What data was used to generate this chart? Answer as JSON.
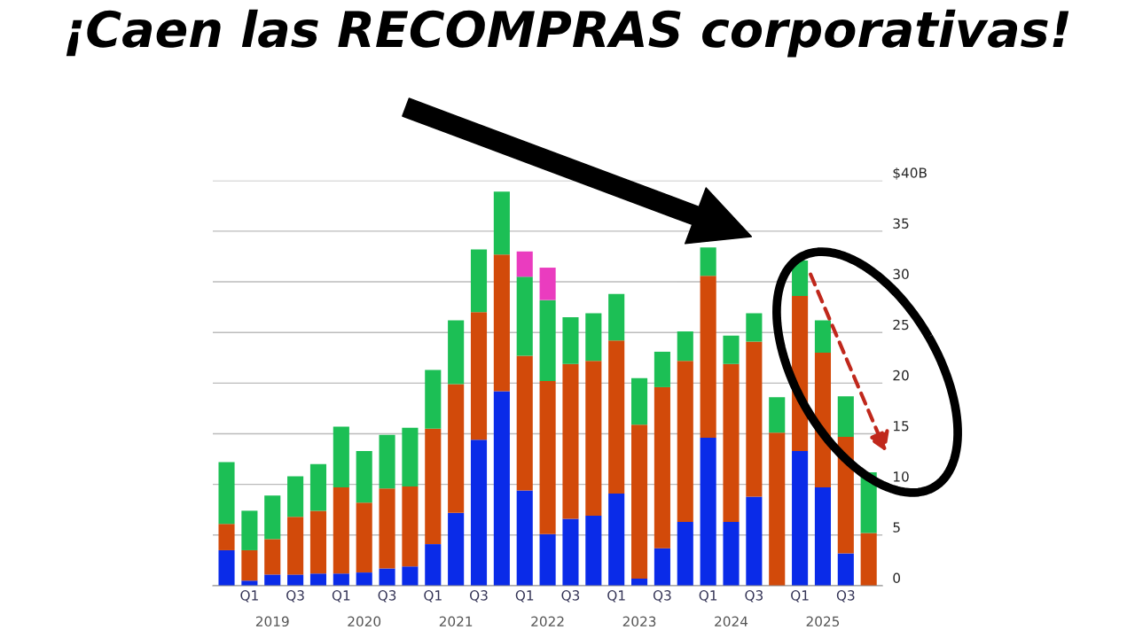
{
  "chart_data": {
    "type": "bar",
    "title": "¡Caen las RECOMPRAS corporativas!",
    "stacked": true,
    "categories": [
      null,
      "Q1",
      null,
      "Q3",
      null,
      "Q1",
      null,
      "Q3",
      null,
      "Q1",
      null,
      "Q3",
      null,
      "Q1",
      null,
      "Q3",
      null,
      "Q1",
      null,
      "Q3",
      null,
      "Q1",
      null,
      "Q3",
      null,
      "Q1",
      null,
      "Q3",
      null
    ],
    "series": [
      {
        "color": "#0a2be8",
        "values": [
          3.5,
          0.5,
          1.1,
          1.1,
          1.2,
          1.2,
          1.3,
          1.7,
          1.9,
          4.1,
          7.2,
          14.4,
          19.2,
          9.4,
          5.1,
          6.6,
          6.9,
          9.1,
          0.7,
          3.7,
          6.3,
          14.6,
          6.3,
          8.8,
          0,
          13.3,
          9.7,
          3.2,
          0
        ]
      },
      {
        "color": "#d24a0a",
        "values": [
          2.6,
          3.0,
          3.5,
          5.7,
          6.2,
          8.5,
          6.9,
          7.9,
          7.9,
          11.4,
          12.7,
          12.6,
          13.5,
          13.3,
          15.1,
          15.3,
          15.3,
          15.1,
          15.2,
          15.9,
          15.9,
          16.0,
          15.6,
          15.3,
          15.1,
          15.3,
          13.3,
          11.5,
          5.2
        ]
      },
      {
        "color": "#1cbf55",
        "values": [
          6.1,
          3.9,
          4.3,
          4.0,
          4.6,
          6.0,
          5.1,
          5.3,
          5.8,
          5.8,
          6.3,
          6.2,
          6.2,
          7.8,
          8.0,
          4.6,
          4.7,
          4.6,
          4.6,
          3.5,
          2.9,
          2.8,
          2.8,
          2.8,
          3.5,
          3.5,
          3.2,
          4.0,
          6.0
        ]
      },
      {
        "color": "#ea3cbf",
        "values": [
          null,
          null,
          null,
          null,
          null,
          null,
          null,
          null,
          null,
          null,
          null,
          null,
          null,
          2.5,
          3.2,
          null,
          null,
          null,
          null,
          null,
          null,
          null,
          null,
          null,
          null,
          null,
          null,
          null,
          null
        ]
      }
    ],
    "ylim": [
      0,
      40
    ],
    "yticks": [
      0,
      5,
      10,
      15,
      20,
      25,
      30,
      35,
      {
        "value": 40,
        "label": "$40B"
      }
    ],
    "grid": "y",
    "annotations": [
      "2019",
      "2020",
      "2021",
      "2022",
      "2023",
      "2024",
      "2025"
    ]
  }
}
